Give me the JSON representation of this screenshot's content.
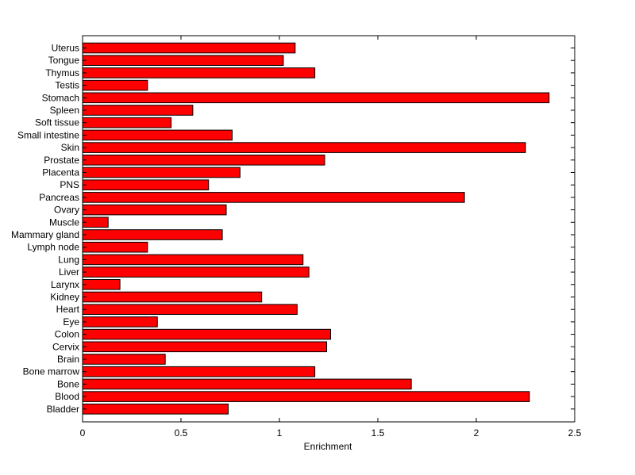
{
  "chart_data": {
    "type": "bar",
    "orientation": "horizontal",
    "title": "",
    "xlabel": "Enrichment",
    "ylabel": "",
    "xlim": [
      0,
      2.5
    ],
    "xticks": [
      "0",
      "0.5",
      "1",
      "1.5",
      "2",
      "2.5"
    ],
    "grid": false,
    "bar_color": "#ff0000",
    "edge_color": "#000000",
    "categories": [
      "Uterus",
      "Tongue",
      "Thymus",
      "Testis",
      "Stomach",
      "Spleen",
      "Soft tissue",
      "Small intestine",
      "Skin",
      "Prostate",
      "Placenta",
      "PNS",
      "Pancreas",
      "Ovary",
      "Muscle",
      "Mammary gland",
      "Lymph node",
      "Lung",
      "Liver",
      "Larynx",
      "Kidney",
      "Heart",
      "Eye",
      "Colon",
      "Cervix",
      "Brain",
      "Bone marrow",
      "Bone",
      "Blood",
      "Bladder"
    ],
    "values": [
      1.08,
      1.02,
      1.18,
      0.33,
      2.37,
      0.56,
      0.45,
      0.76,
      2.25,
      1.23,
      0.8,
      0.64,
      1.94,
      0.73,
      0.13,
      0.71,
      0.33,
      1.12,
      1.15,
      0.19,
      0.91,
      1.09,
      0.38,
      1.26,
      1.24,
      0.42,
      1.18,
      1.67,
      2.27,
      0.74
    ]
  }
}
